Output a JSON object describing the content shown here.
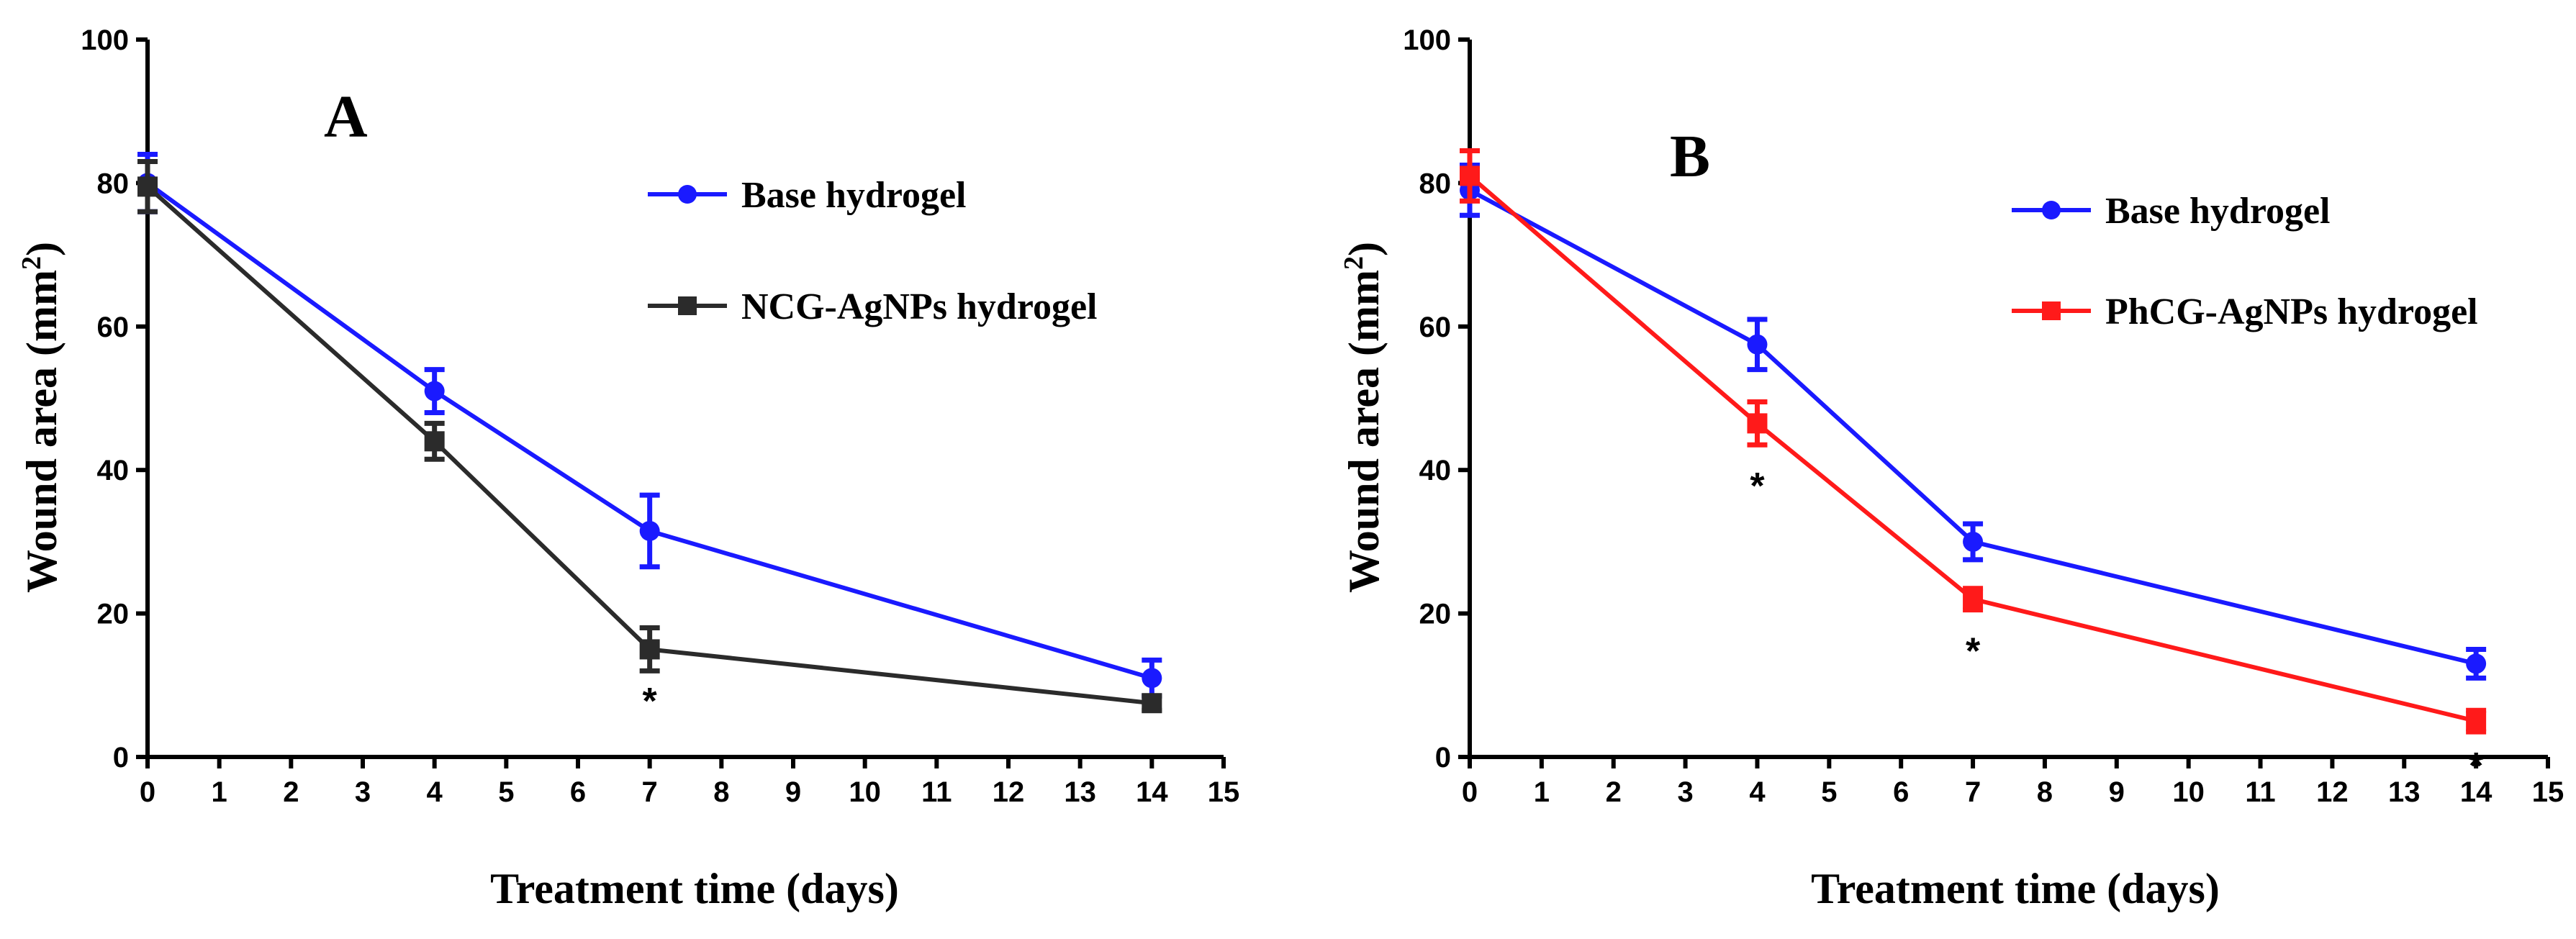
{
  "chart_data": [
    {
      "type": "line",
      "panel_label": "A",
      "xlabel": "Treatment time (days)",
      "ylabel_main": "Wound   area (mm",
      "ylabel_sup": "2",
      "ylabel_end": ")",
      "xlim": [
        0,
        15
      ],
      "ylim": [
        0,
        100
      ],
      "xticks": [
        0,
        1,
        2,
        3,
        4,
        5,
        6,
        7,
        8,
        9,
        10,
        11,
        12,
        13,
        14,
        15
      ],
      "yticks": [
        0,
        20,
        40,
        60,
        80,
        100
      ],
      "legend_position": "top-right",
      "series": [
        {
          "name": "Base hydrogel",
          "color": "#1a1aff",
          "marker": "circle",
          "x": [
            0,
            4,
            7,
            14
          ],
          "y": [
            80,
            51,
            31.5,
            11
          ],
          "err": [
            4,
            3,
            5,
            2.5
          ]
        },
        {
          "name": "NCG-AgNPs hydrogel",
          "color": "#2b2b2b",
          "marker": "square",
          "x": [
            0,
            4,
            7,
            14
          ],
          "y": [
            79.5,
            44,
            15,
            7.5
          ],
          "err": [
            3.5,
            2.5,
            3,
            1
          ]
        }
      ],
      "annotations": [
        {
          "text": "*",
          "x": 7,
          "y": 8
        }
      ]
    },
    {
      "type": "line",
      "panel_label": "B",
      "xlabel": "Treatment time (days)",
      "ylabel_main": "Wound   area (mm",
      "ylabel_sup": "2",
      "ylabel_end": ")",
      "xlim": [
        0,
        15
      ],
      "ylim": [
        0,
        100
      ],
      "xticks": [
        0,
        1,
        2,
        3,
        4,
        5,
        6,
        7,
        8,
        9,
        10,
        11,
        12,
        13,
        14,
        15
      ],
      "yticks": [
        0,
        20,
        40,
        60,
        80,
        100
      ],
      "legend_position": "top-right",
      "series": [
        {
          "name": "Base hydrogel",
          "color": "#1a1aff",
          "marker": "circle",
          "x": [
            0,
            4,
            7,
            14
          ],
          "y": [
            79,
            57.5,
            30,
            13
          ],
          "err": [
            3.5,
            3.5,
            2.5,
            2
          ]
        },
        {
          "name": "PhCG-AgNPs hydrogel",
          "color": "#ff1a1a",
          "marker": "square",
          "x": [
            0,
            4,
            7,
            14
          ],
          "y": [
            81,
            46.5,
            22,
            5
          ],
          "err": [
            3.5,
            3,
            1.5,
            1.5
          ]
        }
      ],
      "annotations": [
        {
          "text": "*",
          "x": 4,
          "y": 38
        },
        {
          "text": "*",
          "x": 7,
          "y": 15
        },
        {
          "text": "*",
          "x": 14,
          "y": -1
        }
      ]
    }
  ]
}
